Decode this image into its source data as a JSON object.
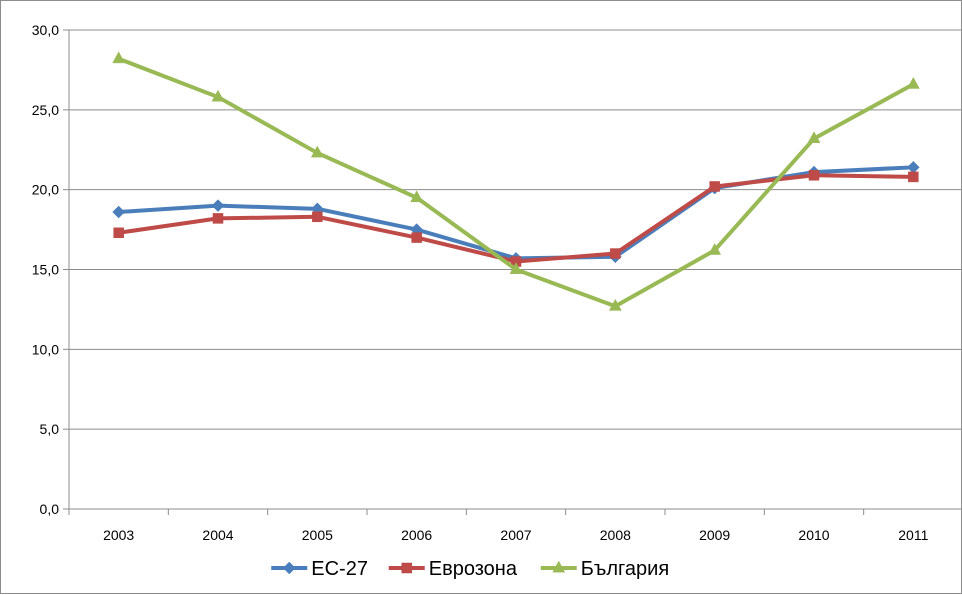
{
  "chart_data": {
    "type": "line",
    "title": "",
    "xlabel": "",
    "ylabel": "",
    "categories": [
      "2003",
      "2004",
      "2005",
      "2006",
      "2007",
      "2008",
      "2009",
      "2010",
      "2011"
    ],
    "ylim": [
      0,
      30
    ],
    "yticks": [
      0,
      5,
      10,
      15,
      20,
      25,
      30
    ],
    "ytick_labels": [
      "0,0",
      "5,0",
      "10,0",
      "15,0",
      "20,0",
      "25,0",
      "30,0"
    ],
    "grid": true,
    "legend_position": "bottom",
    "series": [
      {
        "name": "ЕС-27",
        "color": "#4a7ebb",
        "marker": "diamond",
        "values": [
          18.6,
          19.0,
          18.8,
          17.5,
          15.7,
          15.8,
          20.1,
          21.1,
          21.4
        ]
      },
      {
        "name": "Еврозона",
        "color": "#be4b48",
        "marker": "square",
        "values": [
          17.3,
          18.2,
          18.3,
          17.0,
          15.5,
          16.0,
          20.2,
          20.9,
          20.8
        ]
      },
      {
        "name": "България",
        "color": "#98b954",
        "marker": "triangle",
        "values": [
          28.2,
          25.8,
          22.3,
          19.5,
          15.0,
          12.7,
          16.2,
          23.2,
          26.6
        ]
      }
    ]
  }
}
